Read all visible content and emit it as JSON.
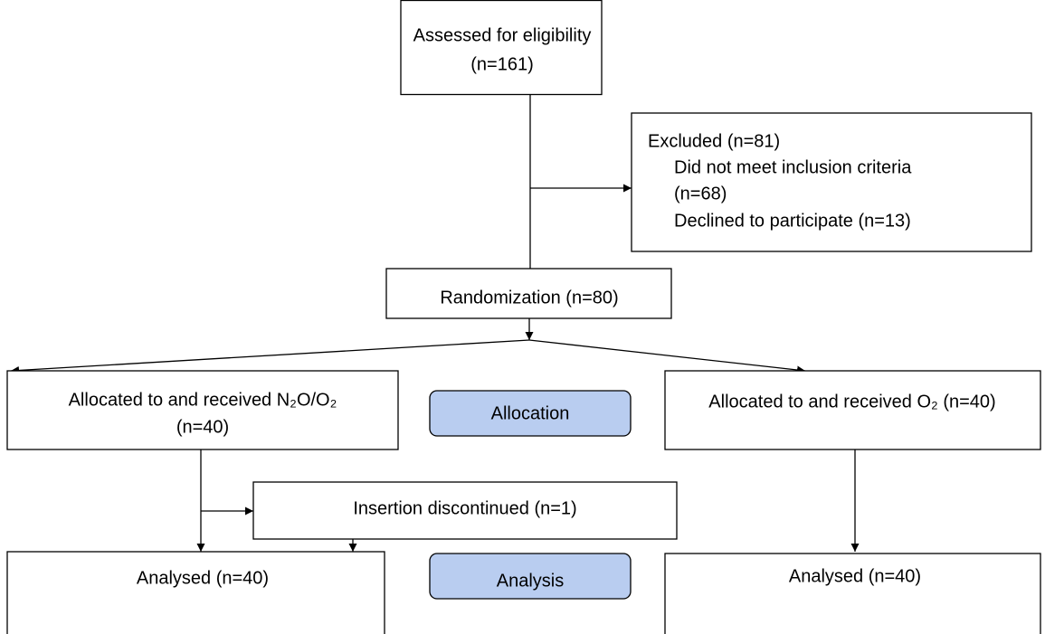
{
  "nodes": [
    {
      "lines": [
        "Assessed for eligibility",
        "(n=161)"
      ]
    },
    {
      "lines": [
        "Excluded (n=81)",
        "Did not meet inclusion criteria",
        "(n=68)",
        "Declined to participate (n=13)"
      ]
    },
    {
      "lines": [
        "Randomization (n=80)"
      ]
    },
    {
      "lines": [
        "Allocated to and received N₂O/O₂",
        "(n=40)"
      ]
    },
    {
      "lines": [
        "Allocation"
      ]
    },
    {
      "lines": [
        "Allocated to and received O₂ (n=40)"
      ]
    },
    {
      "lines": [
        "Insertion discontinued (n=1)"
      ]
    },
    {
      "lines": [
        "Analysed (n=40)"
      ]
    },
    {
      "lines": [
        "Analysis"
      ]
    },
    {
      "lines": [
        "Analysed (n=40)"
      ]
    }
  ]
}
